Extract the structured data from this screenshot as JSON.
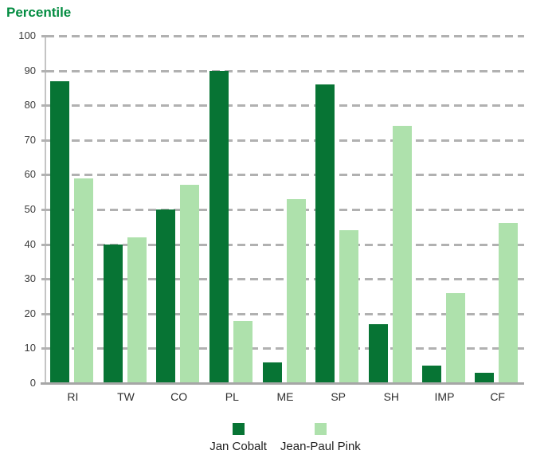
{
  "title": "Percentile",
  "colors": {
    "background": "#ffffff",
    "title": "#038c41",
    "grid": "#b1b1b1",
    "axis_vertical": "#c4c4c4",
    "axis_horizontal": "#a6a6a6",
    "tick_text": "#3c3c3c",
    "label_text": "#2e2e2e"
  },
  "chart_data": {
    "type": "bar",
    "title": "Percentile",
    "categories": [
      "RI",
      "TW",
      "CO",
      "PL",
      "ME",
      "SP",
      "SH",
      "IMP",
      "CF"
    ],
    "series": [
      {
        "name": "Jan Cobalt",
        "color": "#077434",
        "values": [
          87,
          40,
          50,
          90,
          6,
          86,
          17,
          5,
          3
        ]
      },
      {
        "name": "Jean-Paul Pink",
        "color": "#aee1ac",
        "values": [
          59,
          42,
          57,
          18,
          53,
          44,
          74,
          26,
          46
        ]
      }
    ],
    "ylim": [
      0,
      100
    ],
    "yticks": [
      0,
      10,
      20,
      30,
      40,
      50,
      60,
      70,
      80,
      90,
      100
    ],
    "grid": true,
    "gridline_style": "dashed",
    "legend_position": "bottom"
  }
}
